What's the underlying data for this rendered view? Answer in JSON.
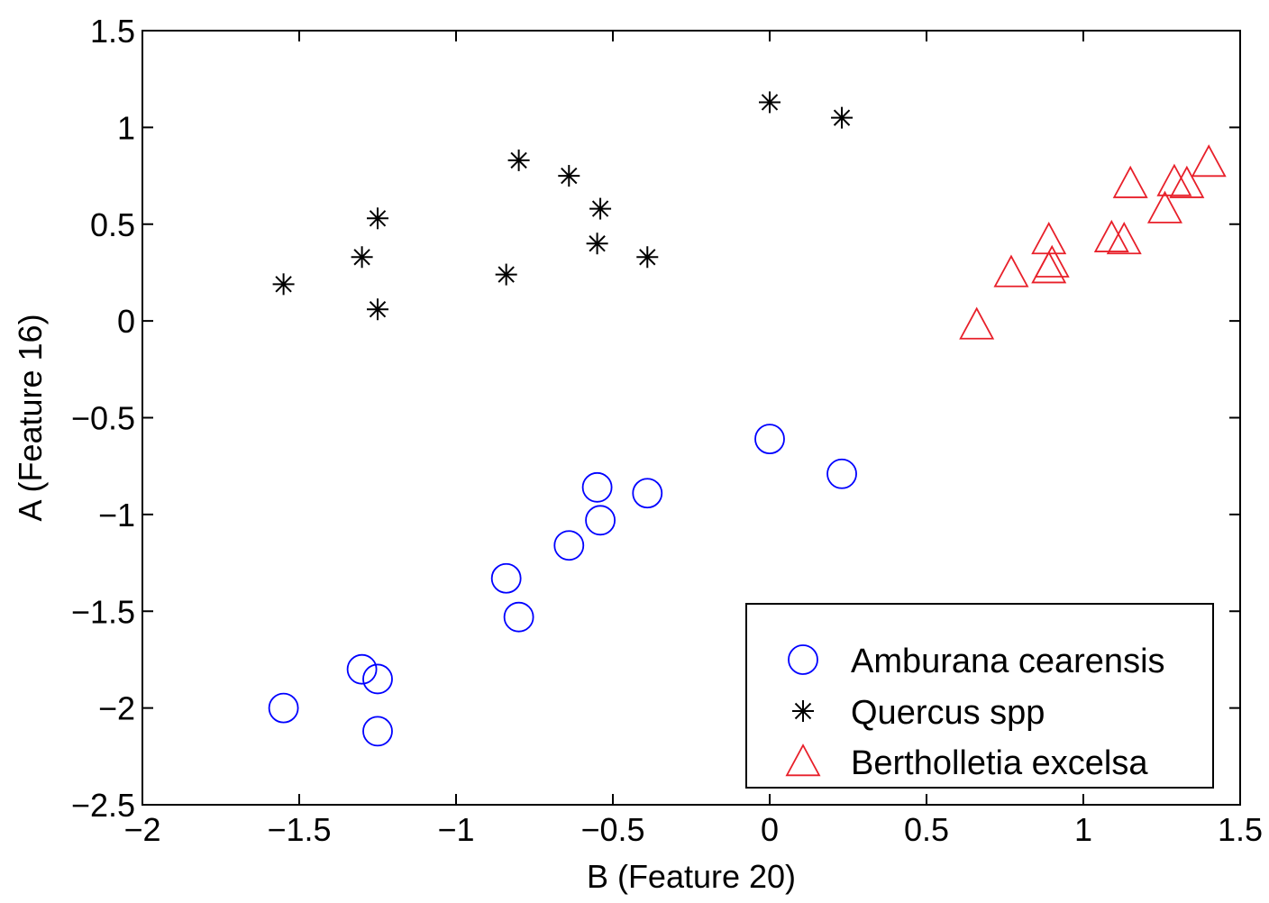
{
  "chart_data": {
    "type": "scatter",
    "xlabel": "B (Feature 20)",
    "ylabel": "A (Feature 16)",
    "xlim": [
      -2,
      1.5
    ],
    "ylim": [
      -2.5,
      1.5
    ],
    "xticks": [
      -2,
      -1.5,
      -1,
      -0.5,
      0,
      0.5,
      1,
      1.5
    ],
    "yticks": [
      -2.5,
      -2,
      -1.5,
      -1,
      -0.5,
      0,
      0.5,
      1,
      1.5
    ],
    "xtick_labels": [
      "−2",
      "−1.5",
      "−1",
      "−0.5",
      "0",
      "0.5",
      "1",
      "1.5"
    ],
    "ytick_labels": [
      "−2.5",
      "−2",
      "−1.5",
      "−1",
      "−0.5",
      "0",
      "0.5",
      "1",
      "1.5"
    ],
    "grid": false,
    "legend_position": "bottom-right",
    "series": [
      {
        "name": "Amburana cearensis",
        "marker": "circle",
        "color": "#0000ff",
        "points": [
          [
            -1.55,
            -2.0
          ],
          [
            -1.3,
            -1.8
          ],
          [
            -1.25,
            -1.85
          ],
          [
            -1.25,
            -2.12
          ],
          [
            -0.84,
            -1.33
          ],
          [
            -0.8,
            -1.53
          ],
          [
            -0.64,
            -1.16
          ],
          [
            -0.55,
            -0.86
          ],
          [
            -0.54,
            -1.03
          ],
          [
            -0.39,
            -0.89
          ],
          [
            0.0,
            -0.61
          ],
          [
            0.23,
            -0.79
          ]
        ]
      },
      {
        "name": "Quercus spp",
        "marker": "asterisk",
        "color": "#000000",
        "points": [
          [
            -1.55,
            0.19
          ],
          [
            -1.3,
            0.33
          ],
          [
            -1.25,
            0.53
          ],
          [
            -1.25,
            0.06
          ],
          [
            -0.84,
            0.24
          ],
          [
            -0.8,
            0.83
          ],
          [
            -0.64,
            0.75
          ],
          [
            -0.55,
            0.4
          ],
          [
            -0.54,
            0.58
          ],
          [
            -0.39,
            0.33
          ],
          [
            0.0,
            1.13
          ],
          [
            0.23,
            1.05
          ]
        ]
      },
      {
        "name": "Bertholletia excelsa",
        "marker": "triangle",
        "color": "#e8202a",
        "points": [
          [
            0.66,
            -0.02
          ],
          [
            0.77,
            0.25
          ],
          [
            0.89,
            0.42
          ],
          [
            0.89,
            0.27
          ],
          [
            0.9,
            0.3
          ],
          [
            1.09,
            0.43
          ],
          [
            1.13,
            0.42
          ],
          [
            1.15,
            0.71
          ],
          [
            1.26,
            0.58
          ],
          [
            1.29,
            0.72
          ],
          [
            1.33,
            0.71
          ],
          [
            1.4,
            0.82
          ]
        ]
      }
    ]
  }
}
